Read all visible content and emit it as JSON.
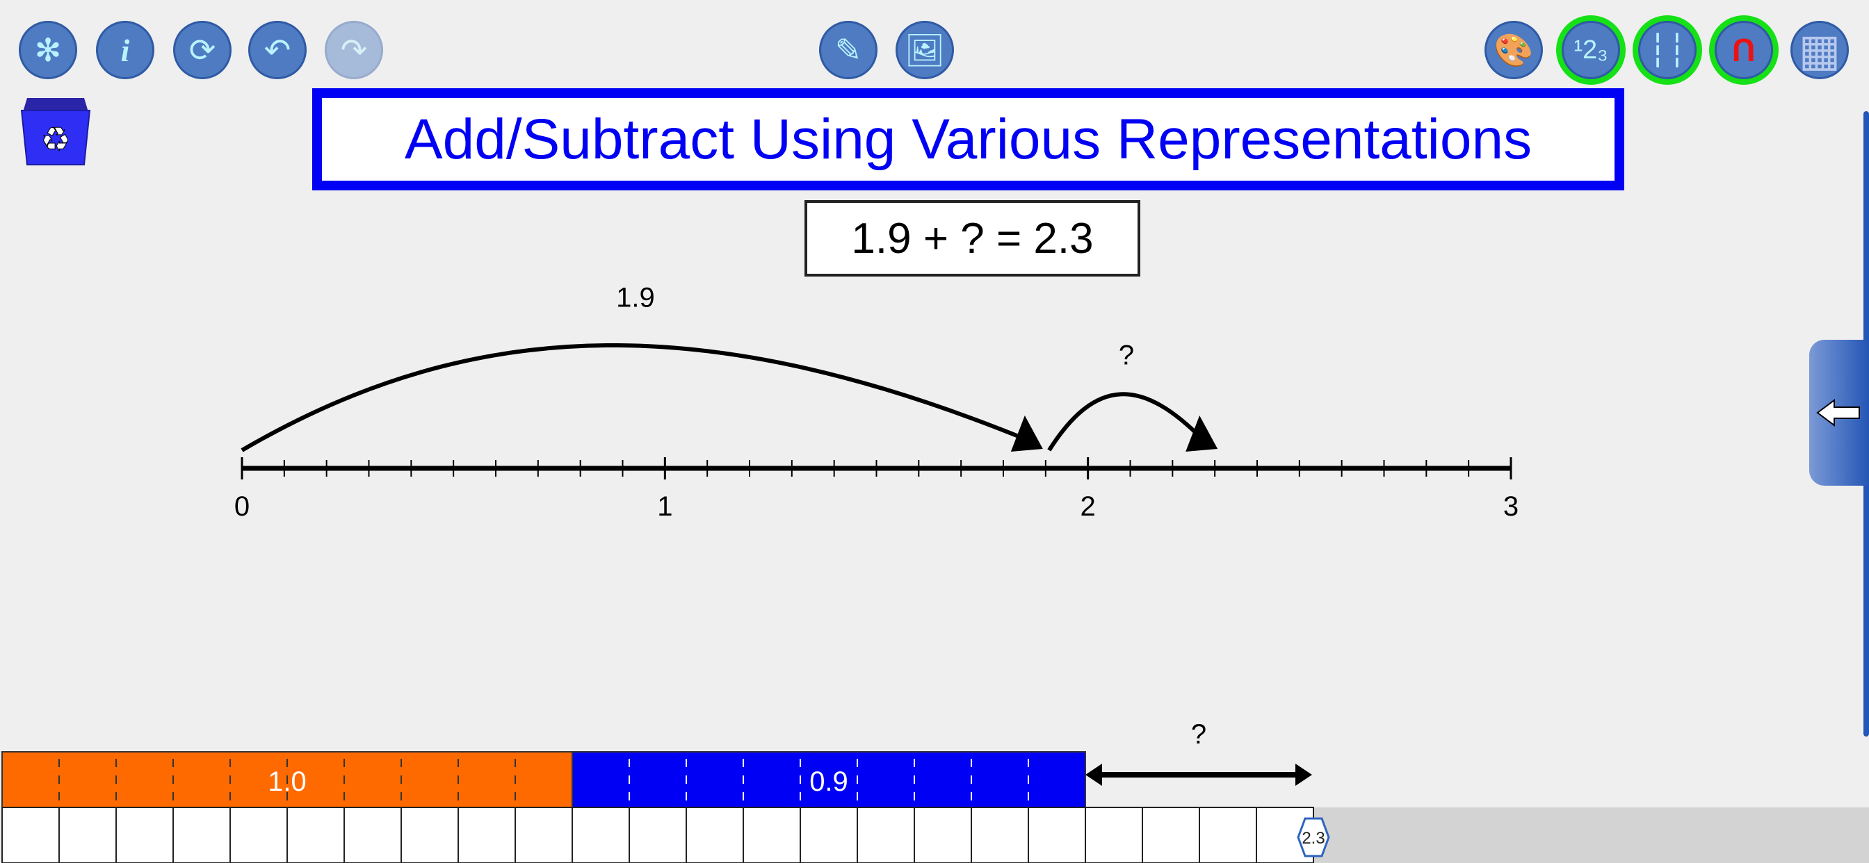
{
  "toolbar_left": [
    {
      "icon": "settings-gear-icon",
      "glyph": "✻",
      "state": "enabled"
    },
    {
      "icon": "info-icon",
      "glyph": "i",
      "state": "enabled"
    },
    {
      "icon": "refresh-icon",
      "glyph": "⟳",
      "state": "enabled"
    },
    {
      "icon": "undo-icon",
      "glyph": "↶",
      "state": "enabled"
    },
    {
      "icon": "redo-icon",
      "glyph": "↷",
      "state": "disabled"
    }
  ],
  "toolbar_center": [
    {
      "icon": "pencil-icon",
      "glyph": "✎"
    },
    {
      "icon": "image-icon",
      "glyph": "🖼"
    }
  ],
  "toolbar_right": [
    {
      "icon": "palette-icon",
      "glyph": "🎨",
      "active": false
    },
    {
      "icon": "numbers-123-icon",
      "glyph": "¹2₃",
      "active": true
    },
    {
      "icon": "dashed-lines-icon",
      "glyph": "┆┆",
      "active": true
    },
    {
      "icon": "magnet-grid-icon",
      "glyph": "U",
      "active": true
    },
    {
      "icon": "grid-icon",
      "glyph": "▦",
      "active": false
    }
  ],
  "title": "Add/Subtract Using Various Representations",
  "equation": "1.9 + ? = 2.3",
  "colors": {
    "title": "#0000f5",
    "orange": "#ff6a00",
    "blue": "#0000f5",
    "button": "#4f7bc2",
    "active_ring": "#16e016"
  },
  "number_line": {
    "min": 0,
    "max": 3,
    "minor_step": 0.1,
    "labels": [
      "0",
      "1",
      "2",
      "3"
    ],
    "jumps": [
      {
        "from": 0,
        "to": 1.9,
        "label": "1.9"
      },
      {
        "from": 1.9,
        "to": 2.3,
        "label": "?"
      }
    ]
  },
  "bar_model": {
    "segments": [
      {
        "from": 0,
        "to": 1.0,
        "label": "1.0",
        "color": "#ff6a00"
      },
      {
        "from": 1.0,
        "to": 1.9,
        "label": "0.9",
        "color": "#0000f5"
      }
    ],
    "unknown": {
      "from": 1.9,
      "to": 2.3,
      "label": "?"
    },
    "ruler_end_label": "2.3",
    "cell_step": 0.1
  }
}
